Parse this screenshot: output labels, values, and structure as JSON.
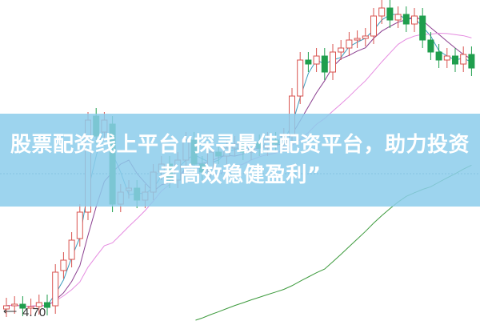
{
  "banner": {
    "line1": "股票配资线上平台“探寻最佳配资平台，助力投资",
    "line2": "者高效稳健盈利”"
  },
  "chart_data": {
    "type": "candlestick",
    "low_label": "4.70",
    "colors": {
      "up": "#d9534f",
      "down": "#1f9e4d",
      "ma_short": "#3a9bbd",
      "ma_mid": "#8a3e8f",
      "ma_long": "#e58be0",
      "ma_longest": "#3c9a3c",
      "banner": "#8cccea"
    },
    "open": [
      4.74,
      4.78,
      4.8,
      4.75,
      4.77,
      4.82,
      4.78,
      5.22,
      5.36,
      5.62,
      5.95,
      7.15,
      6.95,
      7.05,
      6.05,
      6.22,
      6.25,
      6.1,
      6.2,
      6.45,
      6.55,
      6.35,
      6.6,
      6.85,
      6.55,
      6.45,
      6.7,
      6.65,
      6.75,
      6.8,
      6.7,
      6.82,
      6.75,
      6.85,
      6.8,
      6.9,
      7.4,
      7.85,
      7.8,
      7.9,
      7.7,
      7.95,
      8.0,
      8.1,
      8.12,
      8.15,
      8.4,
      8.5,
      8.35,
      8.42,
      8.3,
      8.4,
      8.1,
      7.95,
      7.85,
      7.9,
      7.8,
      7.92
    ],
    "close": [
      4.78,
      4.8,
      4.75,
      4.77,
      4.82,
      4.76,
      5.2,
      5.35,
      5.6,
      5.95,
      7.1,
      6.9,
      7.1,
      6.05,
      6.2,
      6.25,
      6.1,
      6.2,
      6.45,
      6.55,
      6.35,
      6.6,
      6.85,
      6.55,
      6.45,
      6.7,
      6.65,
      6.75,
      6.8,
      6.7,
      6.82,
      6.75,
      6.85,
      6.8,
      6.9,
      7.4,
      7.85,
      7.8,
      7.9,
      7.7,
      7.95,
      8.0,
      8.1,
      8.12,
      8.15,
      8.4,
      8.5,
      8.35,
      8.42,
      8.3,
      8.4,
      8.1,
      7.95,
      7.85,
      7.9,
      7.8,
      7.92,
      7.75
    ],
    "grid": false
  }
}
